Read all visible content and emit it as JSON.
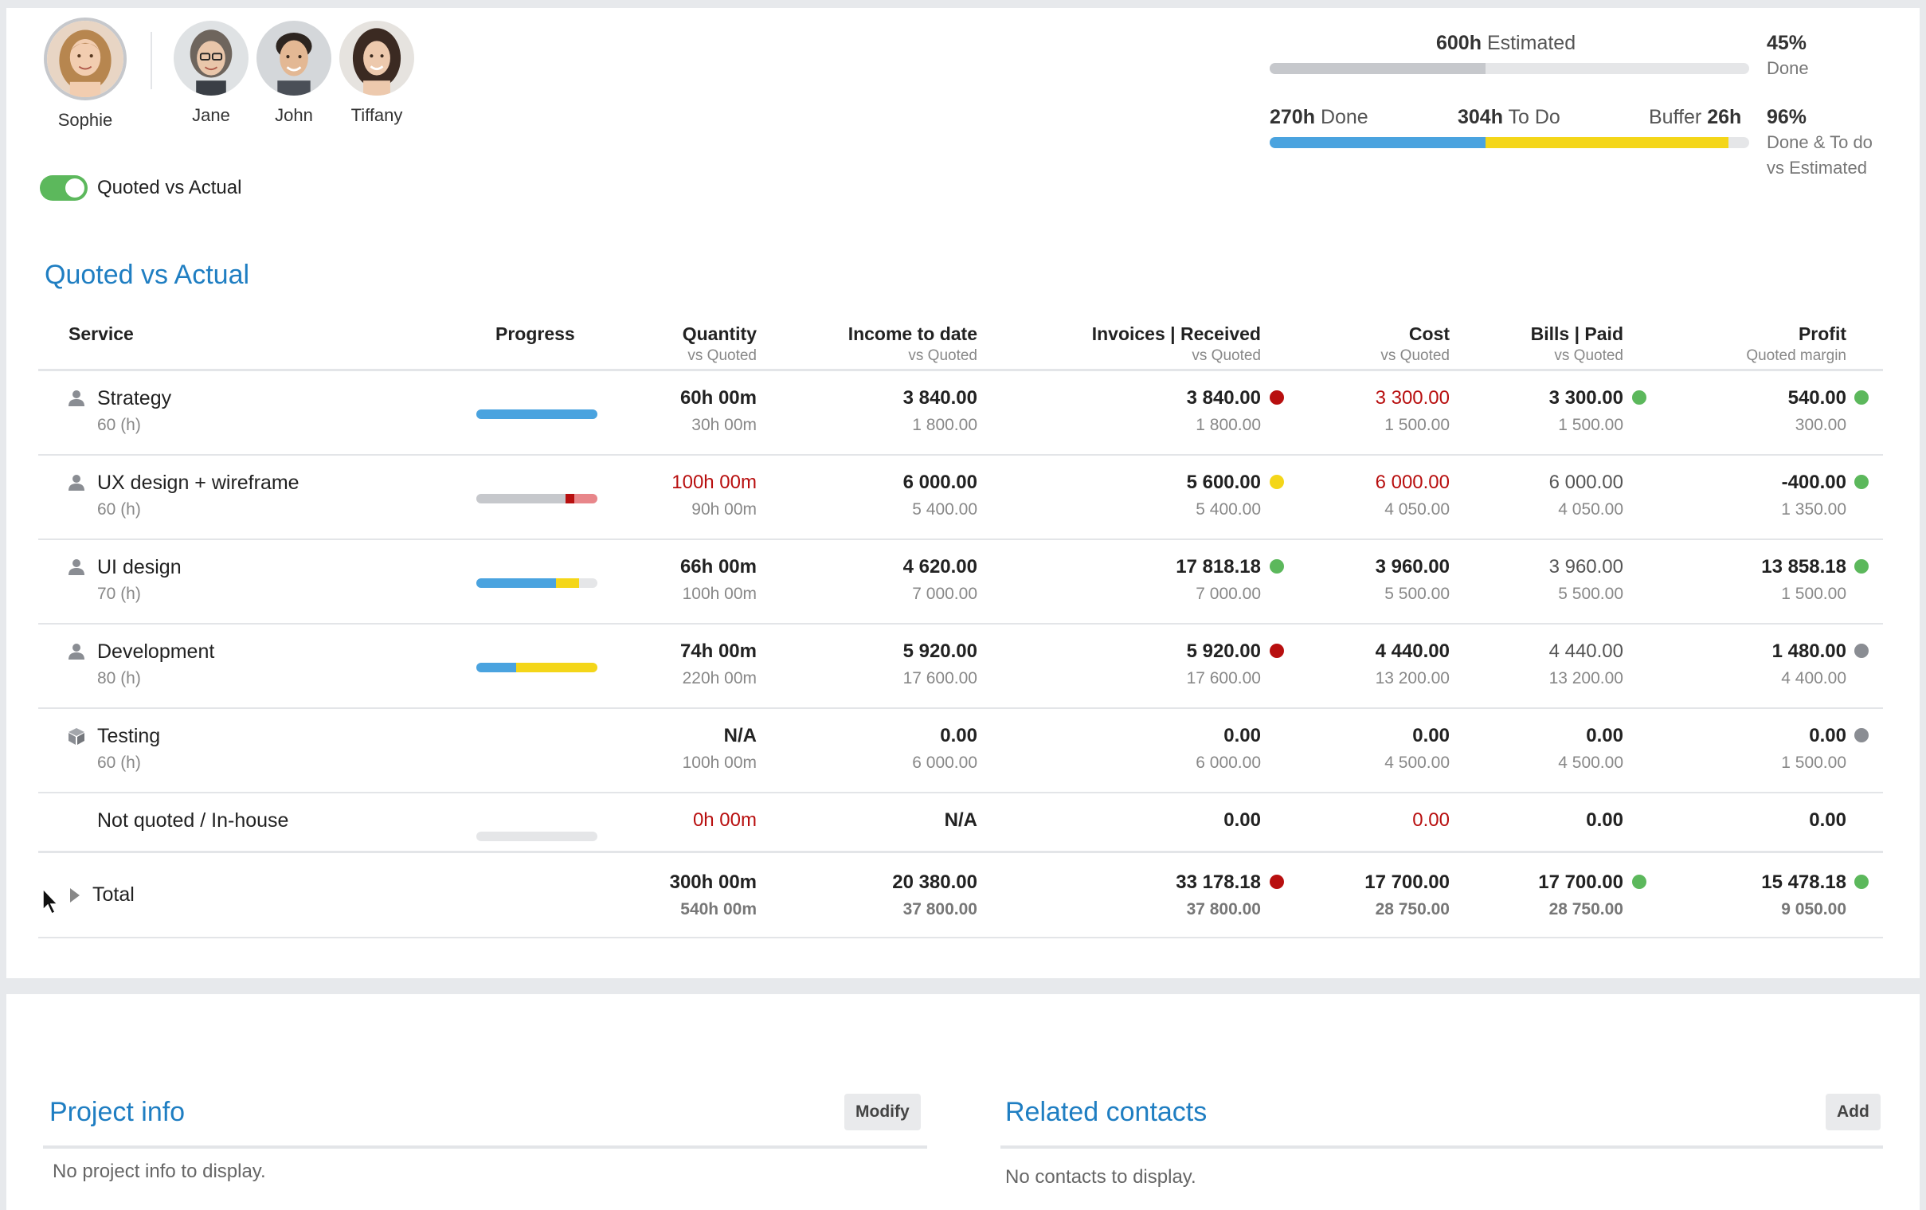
{
  "team": {
    "members": [
      {
        "name": "Sophie",
        "selected": true
      },
      {
        "name": "Jane",
        "selected": false
      },
      {
        "name": "John",
        "selected": false
      },
      {
        "name": "Tiffany",
        "selected": false
      }
    ]
  },
  "estimate": {
    "estimated_value": "600h",
    "estimated_label": "Estimated",
    "done_value": "270h",
    "done_label": "Done",
    "todo_value": "304h",
    "todo_label": "To Do",
    "buffer_label": "Buffer",
    "buffer_value": "26h",
    "pct_done": "45%",
    "pct_done_label": "Done",
    "pct_done_todo": "96%",
    "pct_done_todo_label_1": "Done & To do",
    "pct_done_todo_label_2": "vs Estimated",
    "estimated_bar_fraction": 0.45,
    "done_fraction": 0.45,
    "todo_fraction": 0.5067
  },
  "toggle": {
    "label": "Quoted vs Actual",
    "on": true
  },
  "section": {
    "title": "Quoted vs Actual"
  },
  "table": {
    "headers": {
      "service": "Service",
      "progress": "Progress",
      "quantity": "Quantity",
      "quantity_sub": "vs Quoted",
      "income": "Income to date",
      "income_sub": "vs Quoted",
      "invoices": "Invoices | Received",
      "invoices_sub": "vs Quoted",
      "cost": "Cost",
      "cost_sub": "vs Quoted",
      "bills": "Bills | Paid",
      "bills_sub": "vs Quoted",
      "profit": "Profit",
      "profit_sub": "Quoted margin"
    },
    "rows": [
      {
        "service": "Strategy",
        "service_sub": "60 (h)",
        "icon": "person-icon",
        "qty": "60h 00m",
        "qty_sub": "30h 00m",
        "income": "3 840.00",
        "income_sub": "1 800.00",
        "invoices": "3 840.00",
        "invoices_sub": "1 800.00",
        "invoices_status": "red",
        "cost": "3 300.00",
        "cost_sub": "1 500.00",
        "bills": "3 300.00",
        "bills_sub": "1 500.00",
        "bills_status": "green",
        "profit": "540.00",
        "profit_sub": "300.00",
        "profit_status": "green"
      },
      {
        "service": "UX design + wireframe",
        "service_sub": "60 (h)",
        "icon": "person-icon",
        "qty": "100h 00m",
        "qty_sub": "90h 00m",
        "income": "6 000.00",
        "income_sub": "5 400.00",
        "invoices": "5 600.00",
        "invoices_sub": "5 400.00",
        "invoices_status": "yellow",
        "cost": "6 000.00",
        "cost_sub": "4 050.00",
        "bills": "6 000.00",
        "bills_sub": "4 050.00",
        "bills_status": "",
        "profit": "-400.00",
        "profit_sub": "1 350.00",
        "profit_status": "green"
      },
      {
        "service": "UI design",
        "service_sub": "70 (h)",
        "icon": "person-icon",
        "qty": "66h 00m",
        "qty_sub": "100h 00m",
        "income": "4 620.00",
        "income_sub": "7 000.00",
        "invoices": "17 818.18",
        "invoices_sub": "7 000.00",
        "invoices_status": "green",
        "cost": "3 960.00",
        "cost_sub": "5 500.00",
        "bills": "3 960.00",
        "bills_sub": "5 500.00",
        "bills_status": "",
        "profit": "13 858.18",
        "profit_sub": "1 500.00",
        "profit_status": "green"
      },
      {
        "service": "Development",
        "service_sub": "80 (h)",
        "icon": "person-icon",
        "qty": "74h 00m",
        "qty_sub": "220h 00m",
        "income": "5 920.00",
        "income_sub": "17 600.00",
        "invoices": "5 920.00",
        "invoices_sub": "17 600.00",
        "invoices_status": "red",
        "cost": "4 440.00",
        "cost_sub": "13 200.00",
        "bills": "4 440.00",
        "bills_sub": "13 200.00",
        "bills_status": "",
        "profit": "1 480.00",
        "profit_sub": "4 400.00",
        "profit_status": "gray"
      },
      {
        "service": "Testing",
        "service_sub": "60 (h)",
        "icon": "box-icon",
        "qty": "N/A",
        "qty_sub": "100h 00m",
        "income": "0.00",
        "income_sub": "6 000.00",
        "invoices": "0.00",
        "invoices_sub": "6 000.00",
        "invoices_status": "",
        "cost": "0.00",
        "cost_sub": "4 500.00",
        "bills": "0.00",
        "bills_sub": "4 500.00",
        "bills_status": "",
        "profit": "0.00",
        "profit_sub": "1 500.00",
        "profit_status": "gray"
      },
      {
        "service": "Not quoted / In-house",
        "service_sub": "",
        "icon": "",
        "qty": "0h 00m",
        "qty_sub": "",
        "income": "N/A",
        "income_sub": "",
        "invoices": "0.00",
        "invoices_sub": "",
        "invoices_status": "",
        "cost": "0.00",
        "cost_sub": "",
        "bills": "0.00",
        "bills_sub": "",
        "bills_status": "",
        "profit": "0.00",
        "profit_sub": "",
        "profit_status": ""
      }
    ],
    "progress": [
      {
        "segments": [
          {
            "color": "#4aa3df",
            "fraction": 1.0
          }
        ]
      },
      {
        "segments": [
          {
            "color": "#c6c8cc",
            "fraction": 0.74
          },
          {
            "color": "#b80f0f",
            "fraction": 0.07
          },
          {
            "color": "#e8868a",
            "fraction": 0.19
          }
        ]
      },
      {
        "segments": [
          {
            "color": "#4aa3df",
            "fraction": 0.66
          },
          {
            "color": "#f4d619",
            "fraction": 0.19
          }
        ]
      },
      {
        "segments": [
          {
            "color": "#4aa3df",
            "fraction": 0.33
          },
          {
            "color": "#f4d619",
            "fraction": 0.67
          }
        ]
      },
      null,
      {
        "segments": []
      }
    ],
    "total": {
      "label": "Total",
      "qty": "300h 00m",
      "qty_sub": "540h 00m",
      "income": "20 380.00",
      "income_sub": "37 800.00",
      "invoices": "33 178.18",
      "invoices_sub": "37 800.00",
      "invoices_status": "red",
      "cost": "17 700.00",
      "cost_sub": "28 750.00",
      "bills": "17 700.00",
      "bills_sub": "28 750.00",
      "bills_status": "green",
      "profit": "15 478.18",
      "profit_sub": "9 050.00",
      "profit_status": "green"
    }
  },
  "project_info": {
    "title": "Project info",
    "button": "Modify",
    "empty": "No project info to display."
  },
  "related_contacts": {
    "title": "Related contacts",
    "button": "Add",
    "empty": "No contacts to display."
  }
}
